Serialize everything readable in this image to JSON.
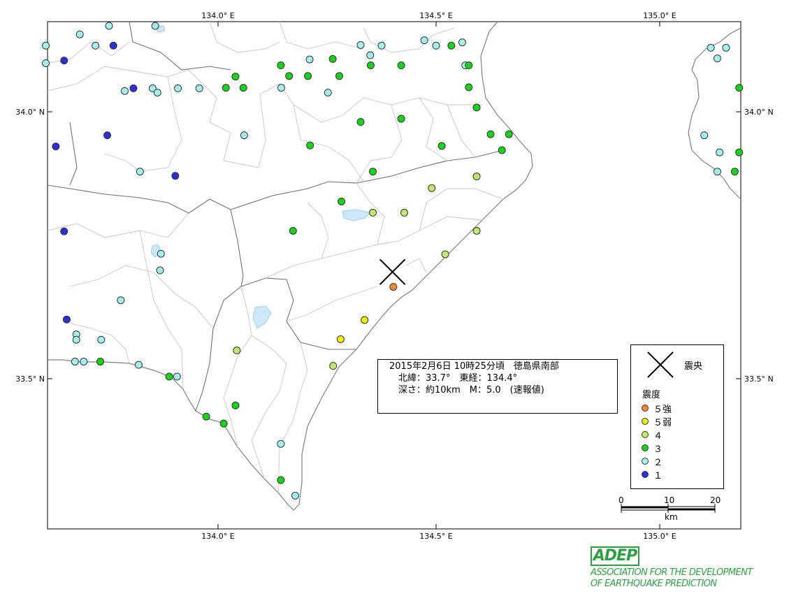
{
  "axis": {
    "top_ticks": [
      "134.0° E",
      "134.5° E",
      "135.0° E"
    ],
    "bottom_ticks": [
      "134.0° E",
      "134.5° E",
      "135.0° E"
    ],
    "left_ticks": [
      "34.0° N",
      "33.5° N"
    ],
    "right_ticks": [
      "34.0° N",
      "33.5° N"
    ]
  },
  "info": {
    "line1": "2015年2月6日 10時25分頃　徳島県南部",
    "line2": "　北緯：33.7°　東経：134.4°",
    "line3": "　深さ：約10km　M：5.0　(速報値)"
  },
  "epicenter": {
    "lat": 33.7,
    "lon": 134.4
  },
  "legend": {
    "epicenter_label": "震央",
    "title": "震度",
    "items": [
      {
        "label": "５強",
        "color": "#f08a2e"
      },
      {
        "label": "５弱",
        "color": "#f5ee0a"
      },
      {
        "label": "４",
        "color": "#c3ea6b"
      },
      {
        "label": "３",
        "color": "#18d418"
      },
      {
        "label": "２",
        "color": "#a5f0f0"
      },
      {
        "label": "１",
        "color": "#2b2fd8"
      }
    ]
  },
  "scale": {
    "ticks": [
      "0",
      "10",
      "20"
    ],
    "unit": "km"
  },
  "logo": {
    "mark": "ADEP",
    "line1": "ASSOCIATION FOR THE DEVELOPMENT",
    "line2": "OF EARTHQUAKE PREDICTION"
  },
  "stations": [
    {
      "lon": 133.75,
      "lat": 34.161,
      "i": 2
    },
    {
      "lon": 133.683,
      "lat": 34.145,
      "i": 2
    },
    {
      "lon": 133.605,
      "lat": 34.124,
      "i": 2
    },
    {
      "lon": 133.719,
      "lat": 34.124,
      "i": 2
    },
    {
      "lon": 133.76,
      "lat": 34.124,
      "i": 1
    },
    {
      "lon": 133.856,
      "lat": 34.161,
      "i": 2
    },
    {
      "lon": 133.605,
      "lat": 34.091,
      "i": 2
    },
    {
      "lon": 133.647,
      "lat": 34.096,
      "i": 1
    },
    {
      "lon": 133.786,
      "lat": 34.039,
      "i": 2
    },
    {
      "lon": 133.806,
      "lat": 34.044,
      "i": 1
    },
    {
      "lon": 133.85,
      "lat": 34.044,
      "i": 2
    },
    {
      "lon": 133.861,
      "lat": 34.036,
      "i": 2
    },
    {
      "lon": 133.908,
      "lat": 34.044,
      "i": 2
    },
    {
      "lon": 133.957,
      "lat": 34.044,
      "i": 2
    },
    {
      "lon": 134.018,
      "lat": 34.045,
      "i": 3
    },
    {
      "lon": 134.04,
      "lat": 34.066,
      "i": 3
    },
    {
      "lon": 134.058,
      "lat": 34.045,
      "i": 3
    },
    {
      "lon": 134.144,
      "lat": 34.087,
      "i": 3
    },
    {
      "lon": 134.145,
      "lat": 34.045,
      "i": 2
    },
    {
      "lon": 134.163,
      "lat": 34.067,
      "i": 3
    },
    {
      "lon": 134.206,
      "lat": 34.067,
      "i": 3
    },
    {
      "lon": 134.21,
      "lat": 34.098,
      "i": 2
    },
    {
      "lon": 134.252,
      "lat": 34.036,
      "i": 2
    },
    {
      "lon": 134.263,
      "lat": 34.099,
      "i": 3
    },
    {
      "lon": 134.278,
      "lat": 34.067,
      "i": 3
    },
    {
      "lon": 134.327,
      "lat": 34.125,
      "i": 2
    },
    {
      "lon": 134.349,
      "lat": 34.106,
      "i": 2
    },
    {
      "lon": 134.35,
      "lat": 34.087,
      "i": 3
    },
    {
      "lon": 134.375,
      "lat": 34.124,
      "i": 2
    },
    {
      "lon": 134.42,
      "lat": 34.087,
      "i": 3
    },
    {
      "lon": 134.473,
      "lat": 34.134,
      "i": 2
    },
    {
      "lon": 134.5,
      "lat": 34.124,
      "i": 2
    },
    {
      "lon": 134.535,
      "lat": 34.124,
      "i": 3
    },
    {
      "lon": 134.56,
      "lat": 34.13,
      "i": 2
    },
    {
      "lon": 134.567,
      "lat": 34.087,
      "i": 2
    },
    {
      "lon": 134.575,
      "lat": 34.087,
      "i": 3
    },
    {
      "lon": 134.575,
      "lat": 34.046,
      "i": 3
    },
    {
      "lon": 134.593,
      "lat": 34.008,
      "i": 3
    },
    {
      "lon": 134.327,
      "lat": 33.981,
      "i": 3
    },
    {
      "lon": 134.42,
      "lat": 33.987,
      "i": 3
    },
    {
      "lon": 134.513,
      "lat": 33.936,
      "i": 3
    },
    {
      "lon": 134.625,
      "lat": 33.958,
      "i": 3
    },
    {
      "lon": 134.667,
      "lat": 33.958,
      "i": 3
    },
    {
      "lon": 134.651,
      "lat": 33.928,
      "i": 3
    },
    {
      "lon": 134.211,
      "lat": 33.937,
      "i": 3
    },
    {
      "lon": 134.355,
      "lat": 33.888,
      "i": 3
    },
    {
      "lon": 134.06,
      "lat": 33.956,
      "i": 2
    },
    {
      "lon": 133.821,
      "lat": 33.888,
      "i": 2
    },
    {
      "lon": 133.746,
      "lat": 33.956,
      "i": 1
    },
    {
      "lon": 133.628,
      "lat": 33.935,
      "i": 1
    },
    {
      "lon": 133.902,
      "lat": 33.88,
      "i": 1
    },
    {
      "lon": 134.283,
      "lat": 33.832,
      "i": 3
    },
    {
      "lon": 134.172,
      "lat": 33.777,
      "i": 3
    },
    {
      "lon": 134.355,
      "lat": 33.811,
      "i": 4
    },
    {
      "lon": 134.427,
      "lat": 33.811,
      "i": 4
    },
    {
      "lon": 134.49,
      "lat": 33.857,
      "i": 4
    },
    {
      "lon": 134.593,
      "lat": 33.879,
      "i": 4
    },
    {
      "lon": 134.593,
      "lat": 33.777,
      "i": 4
    },
    {
      "lon": 134.521,
      "lat": 33.733,
      "i": 4
    },
    {
      "lon": 134.402,
      "lat": 33.672,
      "i": 6
    },
    {
      "lon": 134.336,
      "lat": 33.61,
      "i": 5
    },
    {
      "lon": 134.281,
      "lat": 33.574,
      "i": 5
    },
    {
      "lon": 134.264,
      "lat": 33.524,
      "i": 4
    },
    {
      "lon": 134.043,
      "lat": 33.553,
      "i": 4
    },
    {
      "lon": 134.04,
      "lat": 33.45,
      "i": 3
    },
    {
      "lon": 133.973,
      "lat": 33.429,
      "i": 3
    },
    {
      "lon": 134.013,
      "lat": 33.416,
      "i": 3
    },
    {
      "lon": 134.144,
      "lat": 33.378,
      "i": 2
    },
    {
      "lon": 134.144,
      "lat": 33.31,
      "i": 3
    },
    {
      "lon": 134.177,
      "lat": 33.281,
      "i": 2
    },
    {
      "lon": 133.906,
      "lat": 33.504,
      "i": 2
    },
    {
      "lon": 133.888,
      "lat": 33.504,
      "i": 3
    },
    {
      "lon": 133.818,
      "lat": 33.526,
      "i": 2
    },
    {
      "lon": 133.73,
      "lat": 33.532,
      "i": 3
    },
    {
      "lon": 133.672,
      "lat": 33.532,
      "i": 2
    },
    {
      "lon": 133.692,
      "lat": 33.532,
      "i": 2
    },
    {
      "lon": 133.675,
      "lat": 33.583,
      "i": 2
    },
    {
      "lon": 133.675,
      "lat": 33.573,
      "i": 2
    },
    {
      "lon": 133.732,
      "lat": 33.573,
      "i": 2
    },
    {
      "lon": 133.653,
      "lat": 33.611,
      "i": 1
    },
    {
      "lon": 133.777,
      "lat": 33.647,
      "i": 2
    },
    {
      "lon": 133.867,
      "lat": 33.703,
      "i": 2
    },
    {
      "lon": 133.869,
      "lat": 33.734,
      "i": 2
    },
    {
      "lon": 133.647,
      "lat": 33.776,
      "i": 1
    },
    {
      "lon": 135.13,
      "lat": 34.12,
      "i": 2
    },
    {
      "lon": 135.145,
      "lat": 34.1,
      "i": 2
    },
    {
      "lon": 135.165,
      "lat": 34.12,
      "i": 2
    },
    {
      "lon": 135.195,
      "lat": 34.045,
      "i": 3
    },
    {
      "lon": 135.115,
      "lat": 33.956,
      "i": 2
    },
    {
      "lon": 135.15,
      "lat": 33.924,
      "i": 2
    },
    {
      "lon": 135.195,
      "lat": 33.924,
      "i": 3
    },
    {
      "lon": 135.145,
      "lat": 33.888,
      "i": 2
    },
    {
      "lon": 135.185,
      "lat": 33.888,
      "i": 3
    }
  ]
}
